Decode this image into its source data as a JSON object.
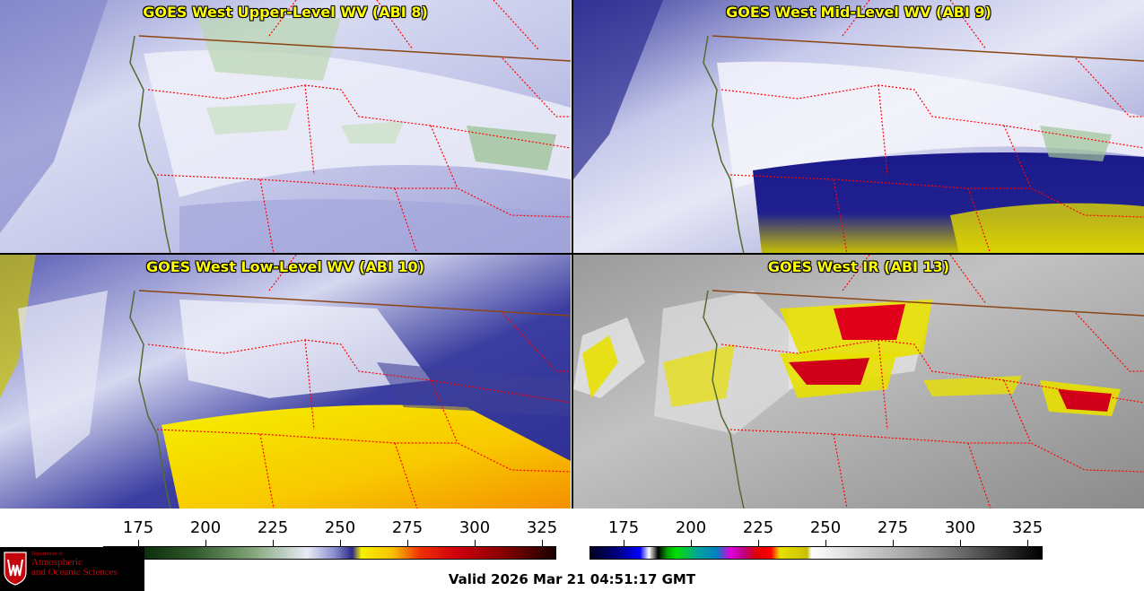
{
  "panels": [
    {
      "title": "GOES West Upper-Level WV (ABI 8)"
    },
    {
      "title": "GOES West Mid-Level WV (ABI 9)"
    },
    {
      "title": "GOES West Low-Level WV (ABI 10)"
    },
    {
      "title": "GOES West IR (ABI 13)"
    }
  ],
  "colorbars": {
    "wv": {
      "ticks": [
        "175",
        "200",
        "225",
        "250",
        "275",
        "300",
        "325"
      ],
      "range": [
        162,
        330
      ]
    },
    "ir": {
      "ticks": [
        "175",
        "200",
        "225",
        "250",
        "275",
        "300",
        "325"
      ],
      "range": [
        162,
        330
      ]
    }
  },
  "valid_time": "Valid 2026 Mar 21 04:51:17 GMT",
  "logo": {
    "line1": "Department of",
    "line2": "Atmospheric",
    "line3": "and Oceanic Sciences"
  },
  "colors": {
    "title": "#ffff00",
    "state_border": "#ff0000",
    "intl_border": "#8b4513",
    "coastline": "#556b2f"
  }
}
